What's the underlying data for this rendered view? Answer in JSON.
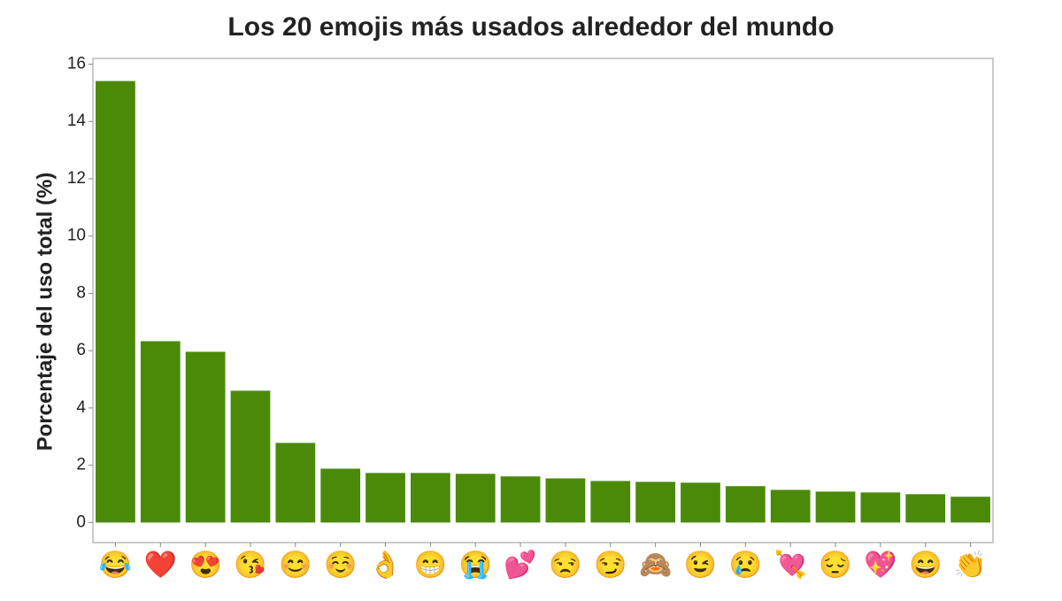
{
  "chart_data": {
    "type": "bar",
    "title": "Los 20 emojis más usados alrededor del mundo",
    "y_label": "Porcentaje del uso total (%)",
    "categories": [
      "😂",
      "❤️",
      "😍",
      "😘",
      "😊",
      "☺️",
      "👌",
      "😁",
      "😭",
      "💕",
      "😒",
      "😏",
      "🙈",
      "😉",
      "😢",
      "💘",
      "😔",
      "💖",
      "😄",
      "👏"
    ],
    "values": [
      15.41,
      6.33,
      5.96,
      4.6,
      2.78,
      1.88,
      1.73,
      1.73,
      1.7,
      1.61,
      1.54,
      1.45,
      1.42,
      1.39,
      1.27,
      1.14,
      1.08,
      1.05,
      0.99,
      0.9
    ],
    "color": "#4a8a08",
    "ylim": [
      -0.7,
      16.2
    ],
    "yticks": [
      0,
      2,
      4,
      6,
      8,
      10,
      12,
      14,
      16
    ],
    "grid": false
  }
}
